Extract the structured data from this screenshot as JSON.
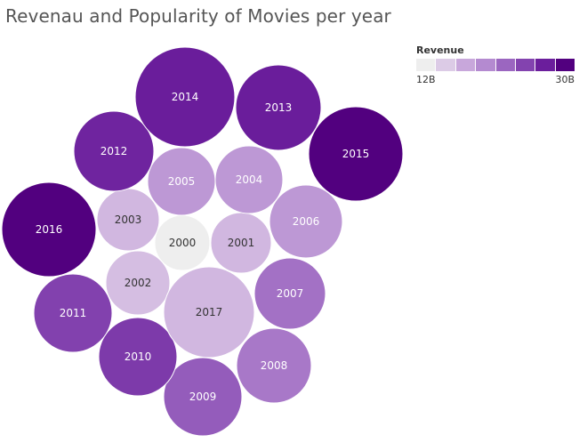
{
  "chart_data": {
    "type": "bubble",
    "title": "Revenau and Popularity of Movies per year",
    "legend": {
      "title": "Revenue",
      "min_label": "12B",
      "max_label": "30B",
      "placement": "top-right",
      "min": 12,
      "max": 30,
      "colors": [
        "#eeeeee",
        "#dccbe6",
        "#c8a7db",
        "#b48ad0",
        "#9b66c0",
        "#8343af",
        "#6b1e9c",
        "#52007f"
      ]
    },
    "points": [
      {
        "label": "2000",
        "revenue": 12
      },
      {
        "label": "2001",
        "revenue": 16
      },
      {
        "label": "2002",
        "revenue": 15.5
      },
      {
        "label": "2003",
        "revenue": 16
      },
      {
        "label": "2004",
        "revenue": 18.5
      },
      {
        "label": "2005",
        "revenue": 18.5
      },
      {
        "label": "2006",
        "revenue": 18.5
      },
      {
        "label": "2007",
        "revenue": 21.5
      },
      {
        "label": "2008",
        "revenue": 21
      },
      {
        "label": "2009",
        "revenue": 23
      },
      {
        "label": "2010",
        "revenue": 25.5
      },
      {
        "label": "2011",
        "revenue": 25
      },
      {
        "label": "2012",
        "revenue": 27
      },
      {
        "label": "2013",
        "revenue": 27.5
      },
      {
        "label": "2014",
        "revenue": 27.5
      },
      {
        "label": "2015",
        "revenue": 30
      },
      {
        "label": "2016",
        "revenue": 30
      },
      {
        "label": "2017",
        "revenue": 16
      }
    ]
  }
}
